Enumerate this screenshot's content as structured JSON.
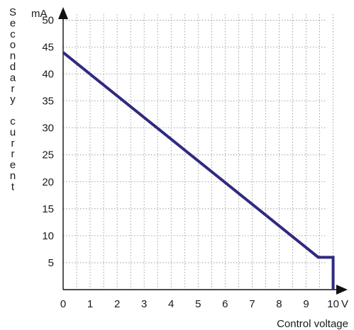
{
  "chart_data": {
    "type": "line",
    "xlabel": "Control voltage",
    "ylabel": "Secondary current",
    "x_unit": "V",
    "y_unit": "mA",
    "xlim": [
      0,
      10.3
    ],
    "ylim": [
      0,
      51.5
    ],
    "x_ticks": [
      0,
      1,
      2,
      3,
      4,
      5,
      6,
      7,
      8,
      9,
      10
    ],
    "y_ticks": [
      5,
      10,
      15,
      20,
      25,
      30,
      35,
      40,
      45,
      50
    ],
    "x_grid": [
      0.5,
      1,
      1.5,
      2,
      2.5,
      3,
      3.5,
      4,
      4.5,
      5,
      5.5,
      6,
      6.5,
      7,
      7.5,
      8,
      8.5,
      9,
      9.5,
      10
    ],
    "y_grid": [
      5,
      10,
      15,
      20,
      25,
      30,
      35,
      40,
      45,
      50
    ],
    "grid": true,
    "legend": "none",
    "series": [
      {
        "x": [
          0,
          9.45,
          10,
          10
        ],
        "y": [
          44,
          6,
          6,
          0
        ],
        "color": "#2f2a80"
      }
    ]
  }
}
